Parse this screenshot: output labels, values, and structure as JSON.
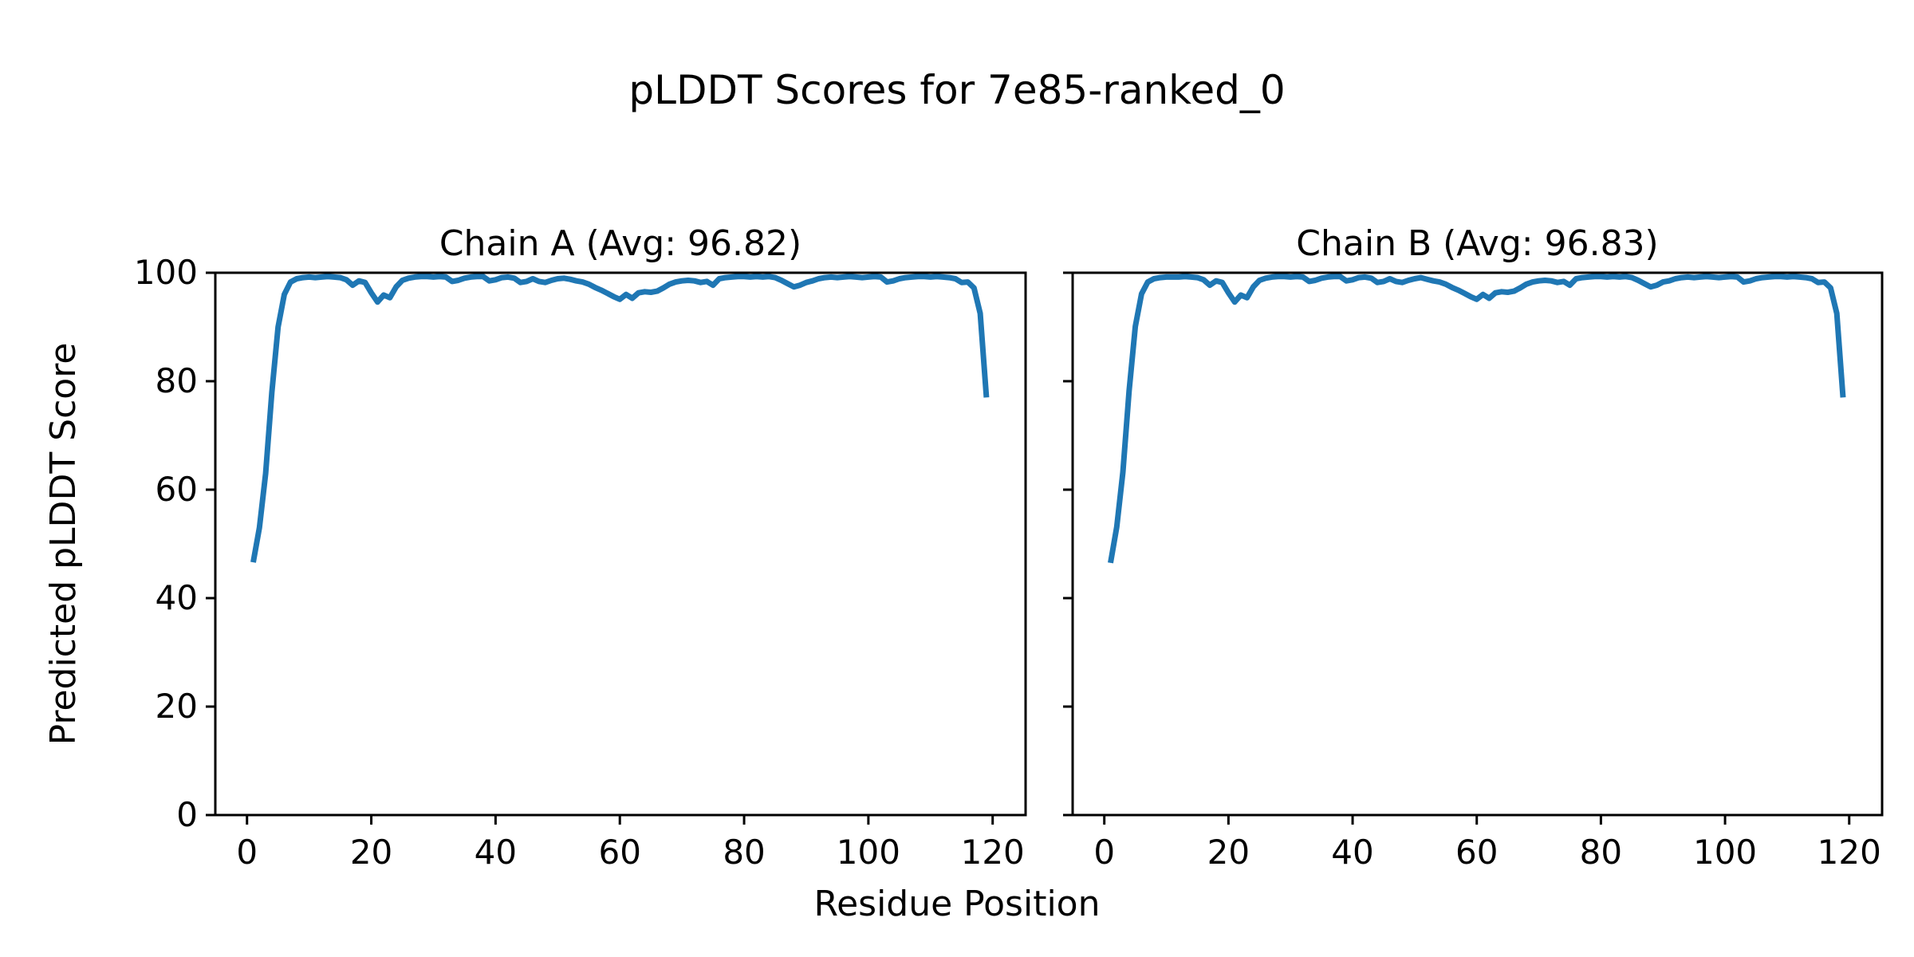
{
  "chart_data": {
    "type": "line",
    "title": "pLDDT Scores for 7e85-ranked_0",
    "xlabel": "Residue Position",
    "ylabel": "Predicted pLDDT Score",
    "line_color": "#1f77b4",
    "spine_color": "#000000",
    "grid": "off",
    "legend": "none",
    "xlim": [
      -5.1,
      125.3
    ],
    "ylim": [
      0,
      100
    ],
    "x_ticks": [
      0,
      20,
      40,
      60,
      80,
      100,
      120
    ],
    "y_ticks": [
      0,
      20,
      40,
      60,
      80,
      100
    ],
    "subplots": [
      {
        "title": "Chain A (Avg: 96.82)",
        "avg": 96.82,
        "x": [
          1,
          2,
          3,
          4,
          5,
          6,
          7,
          8,
          9,
          10,
          11,
          12,
          13,
          14,
          15,
          16,
          17,
          18,
          19,
          20,
          21,
          22,
          23,
          24,
          25,
          26,
          27,
          28,
          29,
          30,
          31,
          32,
          33,
          34,
          35,
          36,
          37,
          38,
          39,
          40,
          41,
          42,
          43,
          44,
          45,
          46,
          47,
          48,
          49,
          50,
          51,
          52,
          53,
          54,
          55,
          56,
          57,
          58,
          59,
          60,
          61,
          62,
          63,
          64,
          65,
          66,
          67,
          68,
          69,
          70,
          71,
          72,
          73,
          74,
          75,
          76,
          77,
          78,
          79,
          80,
          81,
          82,
          83,
          84,
          85,
          86,
          87,
          88,
          89,
          90,
          91,
          92,
          93,
          94,
          95,
          96,
          97,
          98,
          99,
          100,
          101,
          102,
          103,
          104,
          105,
          106,
          107,
          108,
          109,
          110,
          111,
          112,
          113,
          114,
          115,
          116,
          117,
          118,
          119
        ],
        "y": [
          46.6,
          53.0,
          63.0,
          78.0,
          90.0,
          96.0,
          98.3,
          98.9,
          99.1,
          99.2,
          99.1,
          99.2,
          99.3,
          99.2,
          99.1,
          98.7,
          97.7,
          98.5,
          98.2,
          96.3,
          94.6,
          95.9,
          95.4,
          97.4,
          98.6,
          99.0,
          99.2,
          99.3,
          99.3,
          99.2,
          99.3,
          99.2,
          98.4,
          98.6,
          99.0,
          99.2,
          99.3,
          99.3,
          98.5,
          98.7,
          99.1,
          99.2,
          99.0,
          98.2,
          98.4,
          98.9,
          98.4,
          98.2,
          98.6,
          98.9,
          99.0,
          98.8,
          98.5,
          98.3,
          97.9,
          97.3,
          96.8,
          96.2,
          95.6,
          95.1,
          96.0,
          95.3,
          96.3,
          96.5,
          96.4,
          96.6,
          97.2,
          97.9,
          98.3,
          98.5,
          98.6,
          98.5,
          98.2,
          98.4,
          97.7,
          98.9,
          99.1,
          99.2,
          99.3,
          99.3,
          99.2,
          99.3,
          99.2,
          99.3,
          99.1,
          98.6,
          98.0,
          97.4,
          97.7,
          98.2,
          98.5,
          98.9,
          99.1,
          99.2,
          99.1,
          99.2,
          99.3,
          99.2,
          99.1,
          99.2,
          99.3,
          99.2,
          98.3,
          98.5,
          98.9,
          99.1,
          99.2,
          99.3,
          99.3,
          99.2,
          99.3,
          99.2,
          99.1,
          98.9,
          98.2,
          98.3,
          97.2,
          92.5,
          77.0
        ]
      },
      {
        "title": "Chain B (Avg: 96.83)",
        "avg": 96.83,
        "x": [
          1,
          2,
          3,
          4,
          5,
          6,
          7,
          8,
          9,
          10,
          11,
          12,
          13,
          14,
          15,
          16,
          17,
          18,
          19,
          20,
          21,
          22,
          23,
          24,
          25,
          26,
          27,
          28,
          29,
          30,
          31,
          32,
          33,
          34,
          35,
          36,
          37,
          38,
          39,
          40,
          41,
          42,
          43,
          44,
          45,
          46,
          47,
          48,
          49,
          50,
          51,
          52,
          53,
          54,
          55,
          56,
          57,
          58,
          59,
          60,
          61,
          62,
          63,
          64,
          65,
          66,
          67,
          68,
          69,
          70,
          71,
          72,
          73,
          74,
          75,
          76,
          77,
          78,
          79,
          80,
          81,
          82,
          83,
          84,
          85,
          86,
          87,
          88,
          89,
          90,
          91,
          92,
          93,
          94,
          95,
          96,
          97,
          98,
          99,
          100,
          101,
          102,
          103,
          104,
          105,
          106,
          107,
          108,
          109,
          110,
          111,
          112,
          113,
          114,
          115,
          116,
          117,
          118,
          119
        ],
        "y": [
          46.5,
          53.1,
          63.2,
          78.2,
          90.1,
          96.1,
          98.3,
          98.9,
          99.1,
          99.2,
          99.2,
          99.2,
          99.3,
          99.2,
          99.1,
          98.7,
          97.7,
          98.5,
          98.2,
          96.3,
          94.6,
          95.9,
          95.4,
          97.4,
          98.6,
          99.0,
          99.2,
          99.3,
          99.3,
          99.2,
          99.3,
          99.2,
          98.4,
          98.6,
          99.0,
          99.2,
          99.3,
          99.3,
          98.5,
          98.7,
          99.1,
          99.2,
          99.0,
          98.2,
          98.4,
          98.9,
          98.4,
          98.2,
          98.6,
          98.9,
          99.1,
          98.8,
          98.5,
          98.3,
          97.9,
          97.3,
          96.8,
          96.2,
          95.6,
          95.1,
          96.0,
          95.3,
          96.3,
          96.5,
          96.4,
          96.6,
          97.2,
          97.9,
          98.3,
          98.5,
          98.6,
          98.5,
          98.2,
          98.4,
          97.7,
          98.9,
          99.1,
          99.2,
          99.3,
          99.3,
          99.2,
          99.3,
          99.2,
          99.3,
          99.1,
          98.6,
          98.0,
          97.4,
          97.7,
          98.3,
          98.5,
          98.9,
          99.1,
          99.2,
          99.1,
          99.2,
          99.3,
          99.2,
          99.1,
          99.2,
          99.3,
          99.2,
          98.3,
          98.5,
          98.9,
          99.1,
          99.2,
          99.3,
          99.3,
          99.2,
          99.3,
          99.2,
          99.1,
          98.9,
          98.2,
          98.3,
          97.2,
          92.5,
          77.0
        ]
      }
    ]
  }
}
